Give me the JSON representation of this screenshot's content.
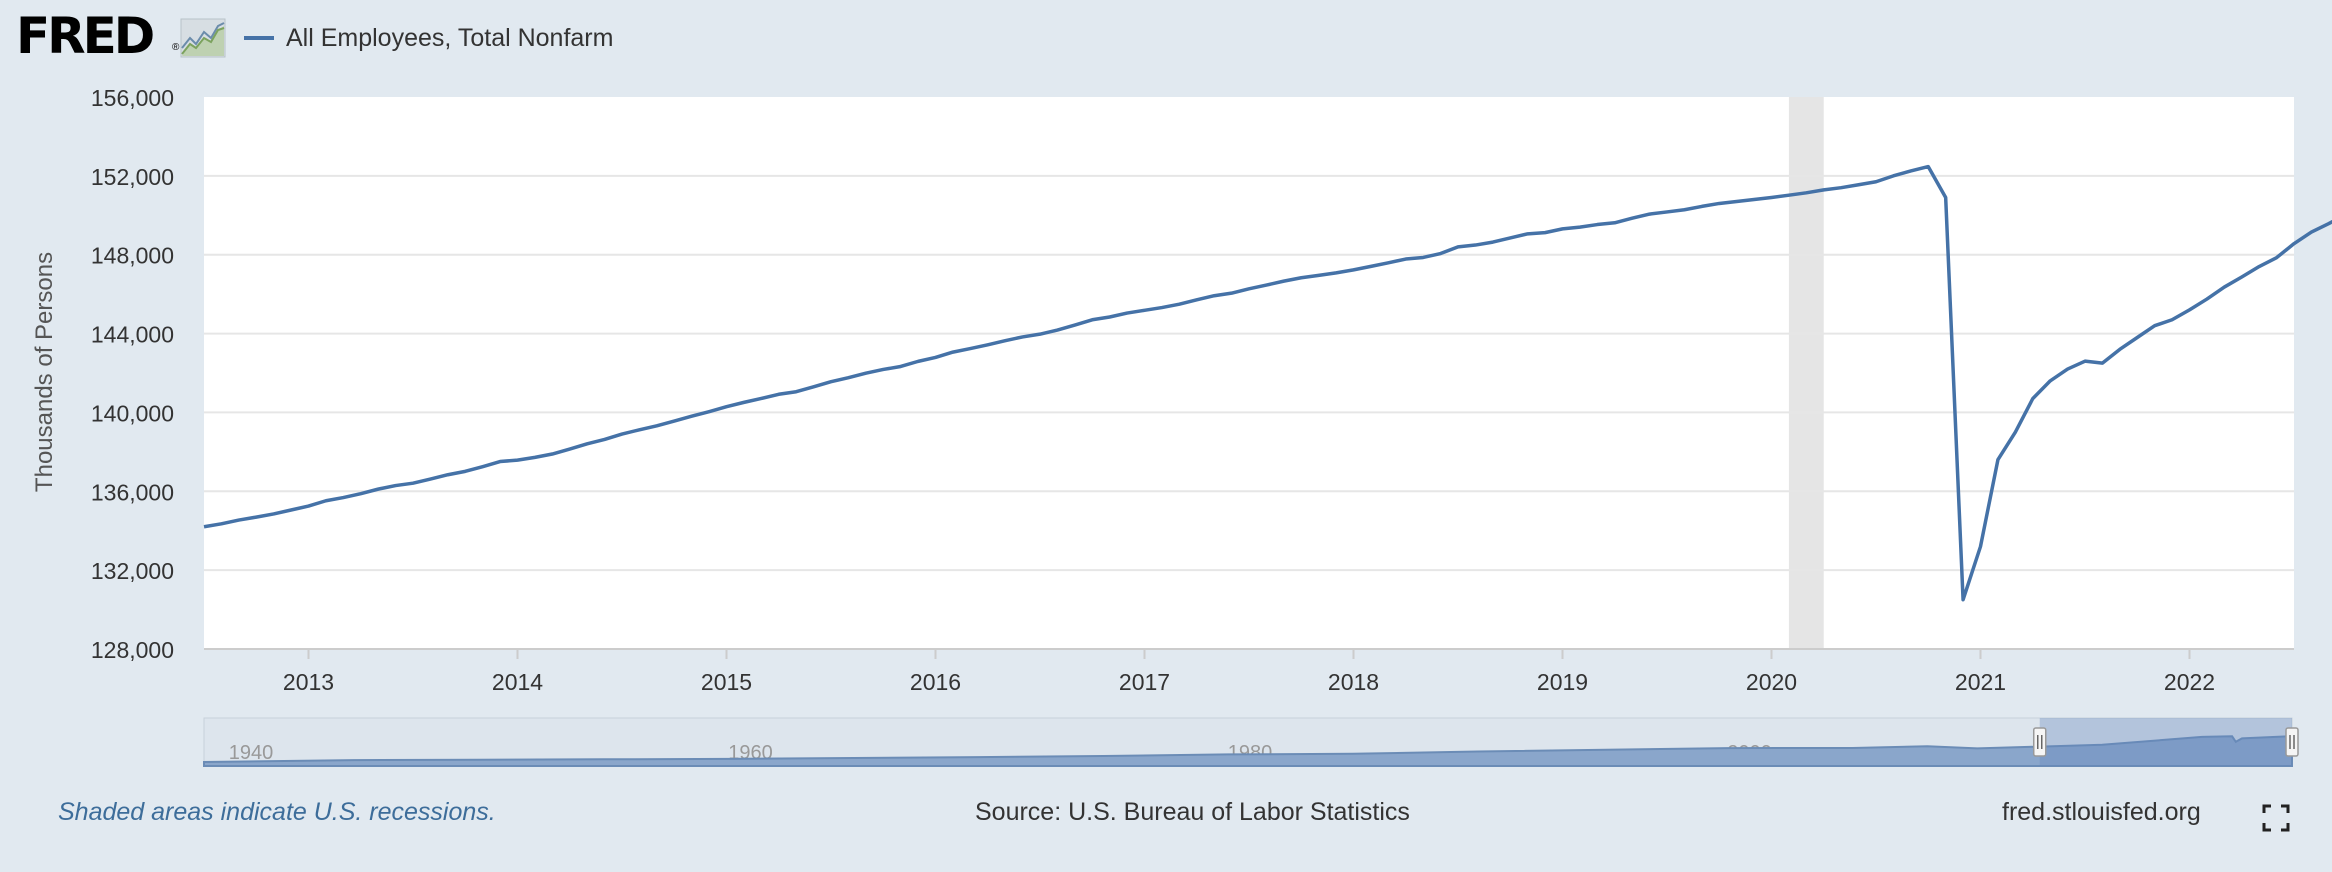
{
  "header": {
    "logo_text": "FRED",
    "logo_reg": "®",
    "legend_label": "All Employees, Total Nonfarm"
  },
  "footer": {
    "note": "Shaded areas indicate U.S. recessions.",
    "source": "Source: U.S. Bureau of Labor Statistics",
    "site": "fred.stlouisfed.org"
  },
  "colors": {
    "series": "#4572a7",
    "background": "#e1e9f0",
    "recession": "#e5e5e5",
    "note_text": "#3d6d9a"
  },
  "icons": [
    "fred-logo-graph-icon",
    "fullscreen-icon"
  ],
  "chart_data": {
    "type": "line",
    "ylabel": "Thousands of Persons",
    "xlim": [
      "2012-07-01",
      "2022-07-01"
    ],
    "ylim": [
      128000,
      156000
    ],
    "y_ticks": [
      128000,
      132000,
      136000,
      140000,
      144000,
      148000,
      152000,
      156000
    ],
    "y_tick_labels": [
      "128,000",
      "132,000",
      "136,000",
      "140,000",
      "144,000",
      "148,000",
      "152,000",
      "156,000"
    ],
    "x_tick_labels": [
      "2013",
      "2014",
      "2015",
      "2016",
      "2017",
      "2018",
      "2019",
      "2020",
      "2021",
      "2022"
    ],
    "grid": true,
    "legend": "top-left",
    "recessions": [
      {
        "start": "2020-02-01",
        "end": "2020-04-01"
      }
    ],
    "series": [
      {
        "name": "All Employees, Total Nonfarm",
        "frequency": "monthly",
        "start": "2012-07",
        "values": [
          134200,
          134350,
          134540,
          134690,
          134850,
          135050,
          135250,
          135520,
          135680,
          135880,
          136110,
          136290,
          136410,
          136620,
          136840,
          137010,
          137250,
          137510,
          137580,
          137720,
          137890,
          138140,
          138410,
          138630,
          138900,
          139120,
          139320,
          139560,
          139810,
          140040,
          140290,
          140510,
          140710,
          140920,
          141050,
          141300,
          141560,
          141760,
          141990,
          142180,
          142330,
          142590,
          142790,
          143060,
          143240,
          143430,
          143640,
          143830,
          143970,
          144180,
          144430,
          144700,
          144840,
          145040,
          145180,
          145320,
          145490,
          145710,
          145920,
          146050,
          146270,
          146460,
          146660,
          146830,
          146950,
          147080,
          147230,
          147410,
          147590,
          147780,
          147860,
          148060,
          148400,
          148490,
          148640,
          148850,
          149060,
          149120,
          149310,
          149400,
          149530,
          149620,
          149850,
          150060,
          150170,
          150280,
          150450,
          150600,
          150700,
          150800,
          150900,
          151020,
          151140,
          151290,
          151400,
          151550,
          151700,
          152000,
          152250,
          152470,
          150900,
          130500,
          133200,
          137600,
          139000,
          140700,
          141600,
          142200,
          142600,
          142500,
          143200,
          143800,
          144400,
          144700,
          145200,
          145750,
          146360,
          146870,
          147400,
          147850,
          148560,
          149150,
          149580,
          150050,
          150450,
          150810,
          151100,
          151450,
          151800,
          152150,
          152500
        ]
      }
    ],
    "navigator": {
      "x_tick_labels": [
        "1940",
        "1960",
        "1980",
        "2000",
        "2020"
      ],
      "selection": [
        "2012-07",
        "2022-07"
      ]
    }
  }
}
